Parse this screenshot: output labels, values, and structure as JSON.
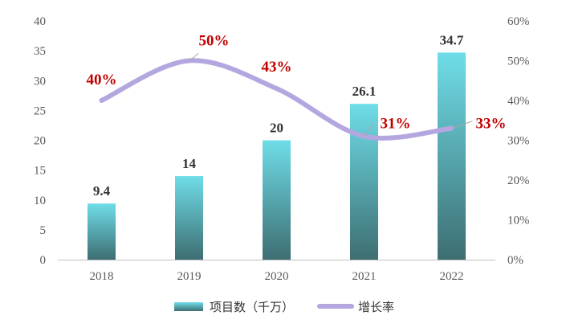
{
  "chart_data": {
    "type": "bar",
    "categories": [
      "2018",
      "2019",
      "2020",
      "2021",
      "2022"
    ],
    "series": [
      {
        "name": "项目数（千万）",
        "type": "bar",
        "axis": "left",
        "values": [
          9.4,
          14,
          20,
          26.1,
          34.7
        ],
        "labels": [
          "9.4",
          "14",
          "20",
          "26.1",
          "34.7"
        ]
      },
      {
        "name": "增长率",
        "type": "line",
        "axis": "right",
        "values": [
          40,
          50,
          43,
          31,
          33
        ],
        "labels": [
          "40%",
          "50%",
          "43%",
          "31%",
          "33%"
        ]
      }
    ],
    "ylim": [
      0,
      40
    ],
    "y_ticks": [
      "0",
      "5",
      "10",
      "15",
      "20",
      "25",
      "30",
      "35",
      "40"
    ],
    "y2lim": [
      0,
      60
    ],
    "y2_ticks": [
      "0%",
      "10%",
      "20%",
      "30%",
      "40%",
      "50%",
      "60%"
    ],
    "grid": false,
    "legend_position": "bottom",
    "colors": {
      "bar_top": "#6fdde8",
      "bar_bottom": "#3d6e72",
      "line": "#b4a7e0",
      "rate_label": "#c00000",
      "axis": "#bfbfbf"
    }
  },
  "legend": {
    "bar_label": "项目数（千万）",
    "line_label": "增长率"
  }
}
